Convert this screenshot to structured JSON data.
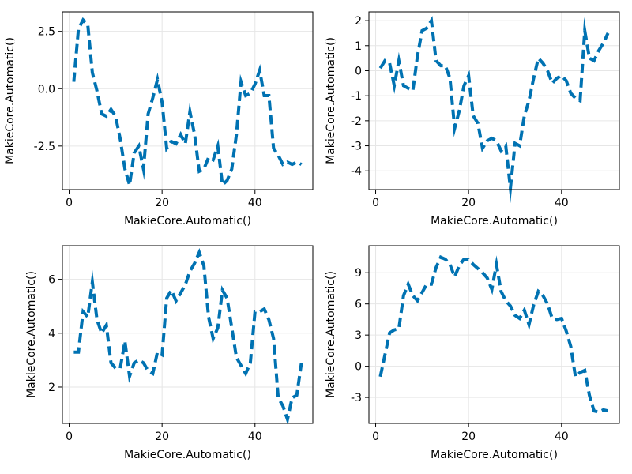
{
  "colors": {
    "series": "#0072b2",
    "grid": "#e6e6e6",
    "frame": "#000000"
  },
  "chart_data": [
    {
      "type": "line",
      "line_style": "dashed",
      "xlabel": "MakieCore.Automatic()",
      "ylabel": "MakieCore.Automatic()",
      "xlim": [
        -1.45,
        52.45
      ],
      "ylim": [
        -4.4,
        3.35
      ],
      "xticks": [
        0,
        20,
        40
      ],
      "xtick_labels": [
        "0",
        "20",
        "40"
      ],
      "yticks": [
        -2.5,
        0,
        2.5
      ],
      "ytick_labels": [
        "-2.5",
        "0.0",
        "2.5"
      ],
      "grid": true,
      "x": [
        1,
        2,
        3,
        4,
        5,
        6,
        7,
        8,
        9,
        10,
        11,
        12,
        13,
        14,
        15,
        16,
        17,
        18,
        19,
        20,
        21,
        22,
        23,
        24,
        25,
        26,
        27,
        28,
        29,
        30,
        31,
        32,
        33,
        34,
        35,
        36,
        37,
        38,
        39,
        40,
        41,
        42,
        43,
        44,
        45,
        46,
        47,
        48,
        49,
        50
      ],
      "values": [
        0.3,
        2.6,
        3.0,
        2.8,
        0.7,
        -0.1,
        -1.1,
        -1.2,
        -0.9,
        -1.2,
        -2.2,
        -3.5,
        -4.2,
        -2.8,
        -2.5,
        -3.5,
        -1.1,
        -0.4,
        0.4,
        -0.6,
        -2.6,
        -2.3,
        -2.4,
        -2.0,
        -2.4,
        -1.0,
        -2.0,
        -3.6,
        -3.5,
        -3.0,
        -3.1,
        -2.5,
        -4.2,
        -4.0,
        -3.5,
        -2.0,
        0.3,
        -0.3,
        -0.2,
        0.2,
        0.8,
        -0.3,
        -0.3,
        -2.6,
        -2.9,
        -3.3,
        -3.2,
        -3.3,
        -3.2,
        -3.3
      ]
    },
    {
      "type": "line",
      "line_style": "dashed",
      "xlabel": "MakieCore.Automatic()",
      "ylabel": "MakieCore.Automatic()",
      "xlim": [
        -1.45,
        52.45
      ],
      "ylim": [
        -4.75,
        2.35
      ],
      "xticks": [
        0,
        20,
        40
      ],
      "xtick_labels": [
        "0",
        "20",
        "40"
      ],
      "yticks": [
        -4,
        -3,
        -2,
        -1,
        0,
        1,
        2
      ],
      "ytick_labels": [
        "-4",
        "-3",
        "-2",
        "-1",
        "0",
        "1",
        "2"
      ],
      "grid": true,
      "x": [
        1,
        2,
        3,
        4,
        5,
        6,
        7,
        8,
        9,
        10,
        11,
        12,
        13,
        14,
        15,
        16,
        17,
        18,
        19,
        20,
        21,
        22,
        23,
        24,
        25,
        26,
        27,
        28,
        29,
        30,
        31,
        32,
        33,
        34,
        35,
        36,
        37,
        38,
        39,
        40,
        41,
        42,
        43,
        44,
        45,
        46,
        47,
        48,
        49,
        50
      ],
      "values": [
        0.1,
        0.4,
        0.3,
        -0.6,
        0.4,
        -0.6,
        -0.7,
        -0.8,
        0.6,
        1.6,
        1.7,
        2.0,
        0.4,
        0.2,
        0.2,
        -0.3,
        -2.3,
        -1.6,
        -0.6,
        -0.2,
        -1.8,
        -2.1,
        -3.1,
        -2.8,
        -2.7,
        -2.8,
        -3.2,
        -3.0,
        -4.7,
        -2.9,
        -3.0,
        -1.8,
        -1.2,
        -0.3,
        0.5,
        0.3,
        0.0,
        -0.5,
        -0.3,
        -0.2,
        -0.4,
        -0.9,
        -1.1,
        -1.2,
        1.6,
        0.5,
        0.4,
        0.8,
        1.1,
        1.5
      ]
    },
    {
      "type": "line",
      "line_style": "dashed",
      "xlabel": "MakieCore.Automatic()",
      "ylabel": "MakieCore.Automatic()",
      "xlim": [
        -1.45,
        52.45
      ],
      "ylim": [
        0.65,
        7.25
      ],
      "xticks": [
        0,
        20,
        40
      ],
      "xtick_labels": [
        "0",
        "20",
        "40"
      ],
      "yticks": [
        2,
        4,
        6
      ],
      "ytick_labels": [
        "2",
        "4",
        "6"
      ],
      "grid": true,
      "x": [
        1,
        2,
        3,
        4,
        5,
        6,
        7,
        8,
        9,
        10,
        11,
        12,
        13,
        14,
        15,
        16,
        17,
        18,
        19,
        20,
        21,
        22,
        23,
        24,
        25,
        26,
        27,
        28,
        29,
        30,
        31,
        32,
        33,
        34,
        35,
        36,
        37,
        38,
        39,
        40,
        41,
        42,
        43,
        44,
        45,
        46,
        47,
        48,
        49,
        50
      ],
      "values": [
        3.3,
        3.3,
        4.8,
        4.6,
        5.9,
        4.5,
        4.0,
        4.3,
        2.9,
        2.7,
        2.7,
        3.7,
        2.4,
        2.9,
        3.0,
        2.9,
        2.6,
        2.5,
        3.3,
        3.2,
        5.3,
        5.6,
        5.2,
        5.5,
        5.8,
        6.3,
        6.6,
        7.0,
        6.5,
        4.6,
        3.8,
        4.2,
        5.6,
        5.3,
        4.2,
        3.1,
        2.8,
        2.5,
        2.9,
        4.8,
        4.8,
        4.9,
        4.5,
        3.8,
        1.6,
        1.3,
        0.8,
        1.6,
        1.7,
        2.9
      ]
    },
    {
      "type": "line",
      "line_style": "dashed",
      "xlabel": "MakieCore.Automatic()",
      "ylabel": "MakieCore.Automatic()",
      "xlim": [
        -1.45,
        52.45
      ],
      "ylim": [
        -5.5,
        11.6
      ],
      "xticks": [
        0,
        20,
        40
      ],
      "xtick_labels": [
        "0",
        "20",
        "40"
      ],
      "yticks": [
        -3,
        0,
        3,
        6,
        9
      ],
      "ytick_labels": [
        "-3",
        "0",
        "3",
        "6",
        "9"
      ],
      "grid": true,
      "x": [
        1,
        2,
        3,
        4,
        5,
        6,
        7,
        8,
        9,
        10,
        11,
        12,
        13,
        14,
        15,
        16,
        17,
        18,
        19,
        20,
        21,
        22,
        23,
        24,
        25,
        26,
        27,
        28,
        29,
        30,
        31,
        32,
        33,
        34,
        35,
        36,
        37,
        38,
        39,
        40,
        41,
        42,
        43,
        44,
        45,
        46,
        47,
        48,
        49,
        50
      ],
      "values": [
        -1.0,
        1.1,
        3.2,
        3.5,
        3.6,
        6.8,
        7.9,
        6.8,
        6.3,
        7.1,
        7.9,
        7.9,
        9.5,
        10.5,
        10.3,
        9.8,
        8.6,
        9.7,
        10.3,
        10.3,
        9.8,
        9.4,
        9.0,
        8.5,
        7.4,
        9.8,
        7.2,
        6.3,
        5.8,
        4.9,
        4.6,
        5.4,
        4.0,
        5.9,
        7.2,
        6.8,
        6.0,
        4.6,
        4.5,
        4.6,
        3.4,
        1.9,
        -1.0,
        -0.6,
        -0.4,
        -2.8,
        -4.3,
        -4.4,
        -4.2,
        -4.3
      ]
    }
  ]
}
